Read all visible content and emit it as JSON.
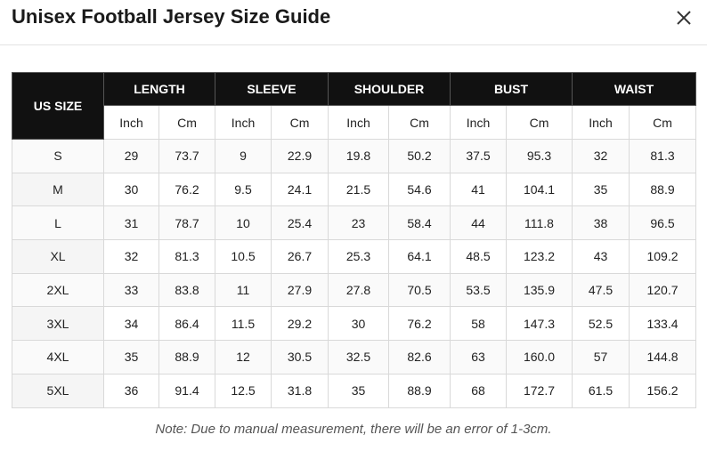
{
  "header": {
    "title": "Unisex Football Jersey Size Guide"
  },
  "table": {
    "corner": "US SIZE",
    "groups": [
      {
        "label": "LENGTH",
        "units": [
          "Inch",
          "Cm"
        ]
      },
      {
        "label": "SLEEVE",
        "units": [
          "Inch",
          "Cm"
        ]
      },
      {
        "label": "SHOULDER",
        "units": [
          "Inch",
          "Cm"
        ]
      },
      {
        "label": "BUST",
        "units": [
          "Inch",
          "Cm"
        ]
      },
      {
        "label": "WAIST",
        "units": [
          "Inch",
          "Cm"
        ]
      }
    ],
    "rows": [
      [
        "S",
        "29",
        "73.7",
        "9",
        "22.9",
        "19.8",
        "50.2",
        "37.5",
        "95.3",
        "32",
        "81.3"
      ],
      [
        "M",
        "30",
        "76.2",
        "9.5",
        "24.1",
        "21.5",
        "54.6",
        "41",
        "104.1",
        "35",
        "88.9"
      ],
      [
        "L",
        "31",
        "78.7",
        "10",
        "25.4",
        "23",
        "58.4",
        "44",
        "111.8",
        "38",
        "96.5"
      ],
      [
        "XL",
        "32",
        "81.3",
        "10.5",
        "26.7",
        "25.3",
        "64.1",
        "48.5",
        "123.2",
        "43",
        "109.2"
      ],
      [
        "2XL",
        "33",
        "83.8",
        "11",
        "27.9",
        "27.8",
        "70.5",
        "53.5",
        "135.9",
        "47.5",
        "120.7"
      ],
      [
        "3XL",
        "34",
        "86.4",
        "11.5",
        "29.2",
        "30",
        "76.2",
        "58",
        "147.3",
        "52.5",
        "133.4"
      ],
      [
        "4XL",
        "35",
        "88.9",
        "12",
        "30.5",
        "32.5",
        "82.6",
        "63",
        "160.0",
        "57",
        "144.8"
      ],
      [
        "5XL",
        "36",
        "91.4",
        "12.5",
        "31.8",
        "35",
        "88.9",
        "68",
        "172.7",
        "61.5",
        "156.2"
      ]
    ]
  },
  "note": "Note: Due to manual measurement, there will be an error of 1-3cm."
}
